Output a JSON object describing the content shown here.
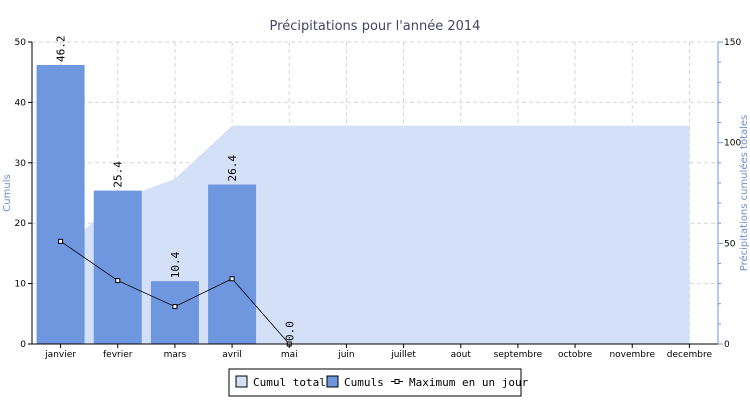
{
  "chart_data": {
    "type": "bar",
    "title": "Précipitations pour l'année 2014",
    "categories": [
      "janvier",
      "fevrier",
      "mars",
      "avril",
      "mai",
      "juin",
      "juillet",
      "aout",
      "septembre",
      "octobre",
      "novembre",
      "decembre"
    ],
    "ylabel_left": "Cumuls",
    "ylabel_right": "Précipitations cumulées totales",
    "ylim_left": [
      0,
      50
    ],
    "ylim_right": [
      0,
      150
    ],
    "yticks_left": [
      0,
      10,
      20,
      30,
      40,
      50
    ],
    "yticks_right": [
      0,
      50,
      100,
      150
    ],
    "grid": true,
    "legend_position": "bottom-center",
    "series": [
      {
        "name": "Cumul total",
        "kind": "area",
        "axis": "right",
        "color": "#d3e0f8",
        "values": [
          46.2,
          71.6,
          82.0,
          108.4,
          108.4,
          108.4,
          108.4,
          108.4,
          108.4,
          108.4,
          108.4,
          108.4
        ]
      },
      {
        "name": "Cumuls",
        "kind": "bar",
        "axis": "left",
        "color": "#6f97df",
        "values": [
          46.2,
          25.4,
          10.4,
          26.4,
          0.0,
          null,
          null,
          null,
          null,
          null,
          null,
          null
        ],
        "labels": [
          "46.2",
          "25.4",
          "10.4",
          "26.4",
          "0.0",
          "",
          "",
          "",
          "",
          "",
          "",
          ""
        ]
      },
      {
        "name": "Maximum en un jour",
        "kind": "line",
        "axis": "left",
        "color": "#000000",
        "values": [
          17,
          10.5,
          6.2,
          10.8,
          0.0,
          null,
          null,
          null,
          null,
          null,
          null,
          null
        ]
      }
    ]
  }
}
